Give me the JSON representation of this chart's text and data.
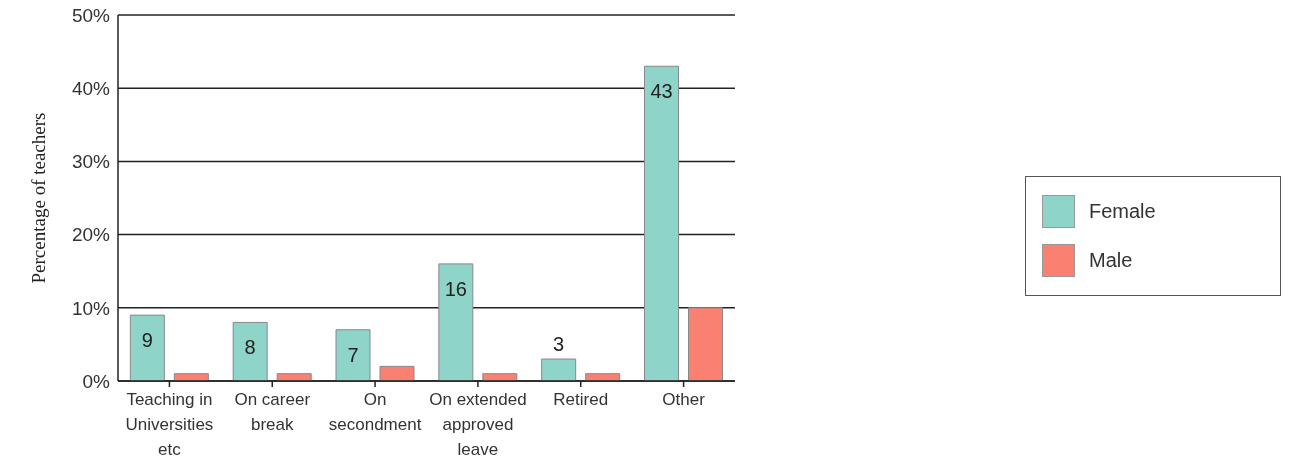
{
  "chart_data": {
    "type": "bar",
    "ylabel": "Percentage of teachers",
    "categories": [
      "Teaching in Universities etc",
      "On career break",
      "On secondment",
      "On extended approved leave",
      "Retired",
      "Other"
    ],
    "series": [
      {
        "name": "Female",
        "color": "#8fd4c8",
        "values": [
          9,
          8,
          7,
          16,
          3,
          43
        ],
        "value_labels": [
          "9",
          "8",
          "7",
          "16",
          "3",
          "43"
        ]
      },
      {
        "name": "Male",
        "color": "#fa8072",
        "values": [
          1,
          1,
          2,
          1,
          1,
          10
        ]
      }
    ],
    "ylim": [
      0,
      50
    ],
    "yticks": [
      {
        "value": 0,
        "label": "0%"
      },
      {
        "value": 10,
        "label": "10%"
      },
      {
        "value": 20,
        "label": "20%"
      },
      {
        "value": 30,
        "label": "30%"
      },
      {
        "value": 40,
        "label": "40%"
      },
      {
        "value": 50,
        "label": "50%"
      }
    ],
    "grid": "y",
    "legend": "right"
  }
}
